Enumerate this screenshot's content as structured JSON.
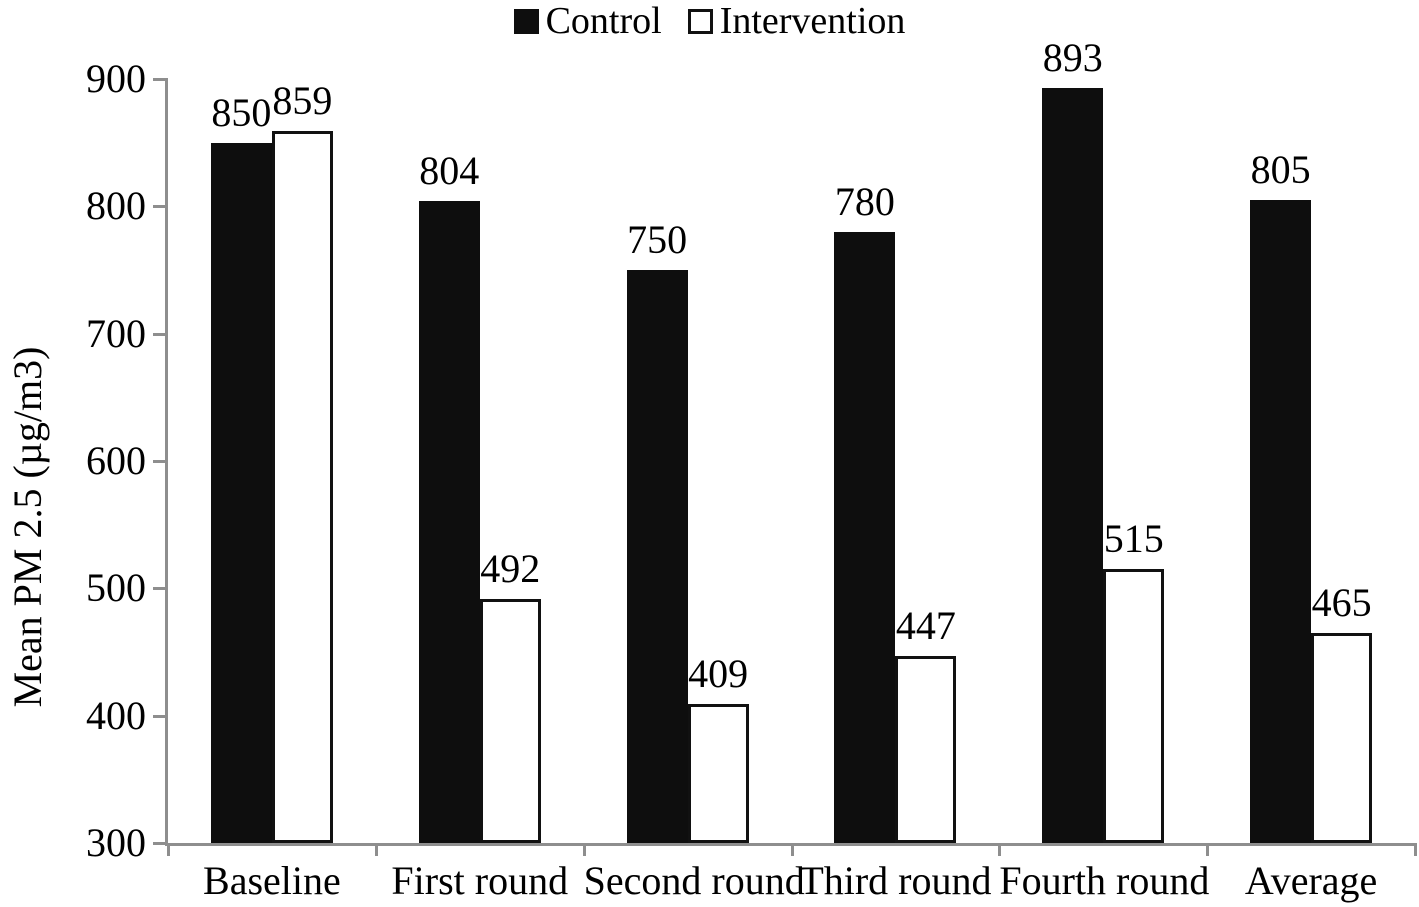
{
  "chart_data": {
    "type": "bar",
    "title": "",
    "xlabel": "",
    "ylabel": "Mean PM 2.5 (µg/m3)",
    "categories": [
      "Baseline",
      "First round",
      "Second round",
      "Third round",
      "Fourth round",
      "Average"
    ],
    "series": [
      {
        "name": "Control",
        "fill": "#0e0e0e",
        "stroke": "#0e0e0e",
        "values": [
          850,
          804,
          750,
          780,
          893,
          805
        ]
      },
      {
        "name": "Intervention",
        "fill": "#ffffff",
        "stroke": "#111111",
        "values": [
          859,
          492,
          409,
          447,
          515,
          465
        ]
      }
    ],
    "ylim": [
      300,
      900
    ],
    "yticks": [
      300,
      400,
      500,
      600,
      700,
      800,
      900
    ],
    "grid": false,
    "legend_position": "top",
    "data_labels": true,
    "axis_color": "#8e8e8e",
    "text_color": "#000000"
  }
}
